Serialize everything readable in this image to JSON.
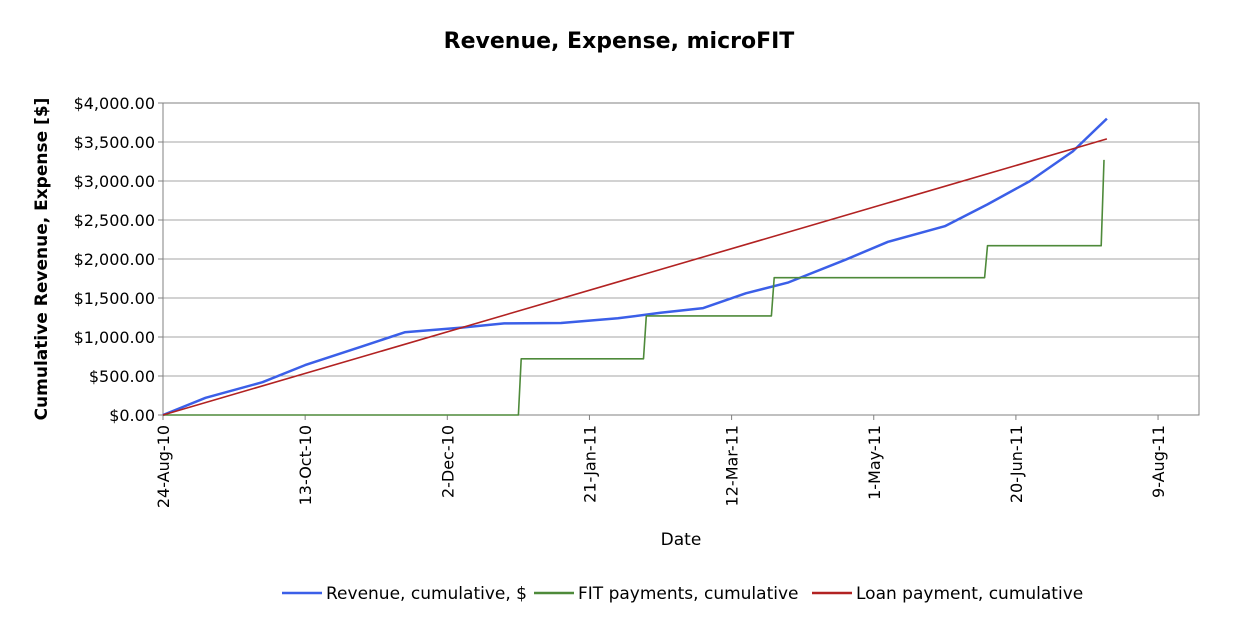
{
  "chart_data": {
    "type": "line",
    "title": "Revenue, Expense, microFIT",
    "xlabel": "Date",
    "ylabel": "Cumulative Revenue, Expense [$]",
    "x_ticks": [
      "24-Aug-10",
      "13-Oct-10",
      "2-Dec-10",
      "21-Jan-11",
      "12-Mar-11",
      "1-May-11",
      "20-Jun-11",
      "9-Aug-11"
    ],
    "y_ticks": [
      "$0.00",
      "$500.00",
      "$1,000.00",
      "$1,500.00",
      "$2,000.00",
      "$2,500.00",
      "$3,000.00",
      "$3,500.00",
      "$4,000.00"
    ],
    "xlim": [
      "2010-08-24",
      "2011-08-24"
    ],
    "ylim": [
      0,
      4000
    ],
    "grid": "horizontal",
    "legend_position": "bottom",
    "series": [
      {
        "name": "Revenue, cumulative, $",
        "color": "#3b5fe8",
        "x": [
          "2010-08-24",
          "2010-09-08",
          "2010-09-28",
          "2010-10-13",
          "2010-11-02",
          "2010-11-17",
          "2010-12-07",
          "2010-12-22",
          "2011-01-11",
          "2011-01-31",
          "2011-02-15",
          "2011-03-02",
          "2011-03-17",
          "2011-04-01",
          "2011-04-21",
          "2011-05-06",
          "2011-05-26",
          "2011-06-10",
          "2011-06-25",
          "2011-07-10",
          "2011-07-22"
        ],
        "y": [
          0,
          220,
          420,
          640,
          880,
          1060,
          1120,
          1175,
          1180,
          1240,
          1310,
          1370,
          1560,
          1700,
          1990,
          2220,
          2420,
          2700,
          3000,
          3380,
          3800
        ]
      },
      {
        "name": "FIT payments, cumulative",
        "color": "#4e8a3a",
        "x": [
          "2010-08-24",
          "2010-12-27",
          "2010-12-28",
          "2011-02-09",
          "2011-02-10",
          "2011-03-26",
          "2011-03-27",
          "2011-06-09",
          "2011-06-10",
          "2011-07-20",
          "2011-07-21"
        ],
        "y": [
          0,
          0,
          720,
          720,
          1270,
          1270,
          1760,
          1760,
          2170,
          2170,
          3270
        ]
      },
      {
        "name": "Loan payment, cumulative",
        "color": "#b22222",
        "x": [
          "2010-08-24",
          "2011-07-22"
        ],
        "y": [
          0,
          3540
        ]
      }
    ]
  }
}
